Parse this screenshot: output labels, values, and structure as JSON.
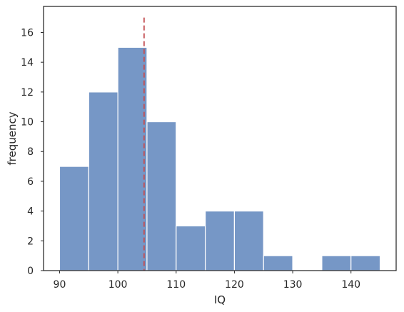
{
  "chart_data": {
    "type": "bar",
    "subtype": "histogram",
    "title": "",
    "xlabel": "IQ",
    "ylabel": "frequency",
    "xlim": [
      87.25,
      147.75
    ],
    "ylim": [
      0,
      17.75
    ],
    "x_ticks": [
      90,
      100,
      110,
      120,
      130,
      140
    ],
    "y_ticks": [
      0,
      2,
      4,
      6,
      8,
      10,
      12,
      14,
      16
    ],
    "bins": [
      {
        "start": 90,
        "end": 95,
        "count": 7
      },
      {
        "start": 95,
        "end": 100,
        "count": 12
      },
      {
        "start": 100,
        "end": 105,
        "count": 15
      },
      {
        "start": 105,
        "end": 110,
        "count": 10
      },
      {
        "start": 110,
        "end": 115,
        "count": 3
      },
      {
        "start": 115,
        "end": 120,
        "count": 4
      },
      {
        "start": 120,
        "end": 125,
        "count": 4
      },
      {
        "start": 125,
        "end": 130,
        "count": 1
      },
      {
        "start": 130,
        "end": 135,
        "count": 0
      },
      {
        "start": 135,
        "end": 140,
        "count": 1
      },
      {
        "start": 140,
        "end": 145,
        "count": 1
      }
    ],
    "reference_line": {
      "x": 104.5,
      "y_top": 17,
      "color": "#c44e52",
      "style": "dashed"
    },
    "bar_color": "#7697c6",
    "bar_edge_color": "#ffffff",
    "grid": false,
    "legend": "none"
  }
}
